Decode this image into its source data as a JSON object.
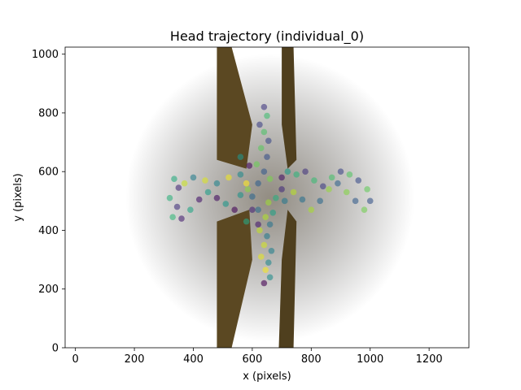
{
  "chart_data": {
    "type": "scatter",
    "title": "Head trajectory (individual_0)",
    "xlabel": "x (pixels)",
    "ylabel": "y (pixels)",
    "xlim": [
      -35,
      1335
    ],
    "ylim": [
      1024,
      0
    ],
    "y_inverted": true,
    "xticks": [
      0,
      200,
      400,
      600,
      800,
      1000,
      1200
    ],
    "yticks": [
      0,
      200,
      400,
      600,
      800,
      1000
    ],
    "background_image": "overhead video frame of a plus-shaped (cross) maze with wooden arms on a dark background",
    "image_extent": {
      "x": [
        0,
        1296
      ],
      "y": [
        0,
        1024
      ]
    },
    "colormap": "viridis",
    "grid": false,
    "legend": "none",
    "series": [
      {
        "points": [
          [
            640,
            220
          ],
          [
            660,
            240
          ],
          [
            645,
            265
          ],
          [
            655,
            290
          ],
          [
            630,
            310
          ],
          [
            665,
            330
          ],
          [
            640,
            350
          ],
          [
            650,
            380
          ],
          [
            625,
            400
          ],
          [
            660,
            420
          ],
          [
            645,
            445
          ],
          [
            620,
            470
          ],
          [
            655,
            495
          ],
          [
            600,
            515
          ],
          [
            585,
            540
          ],
          [
            620,
            560
          ],
          [
            660,
            575
          ],
          [
            640,
            600
          ],
          [
            615,
            625
          ],
          [
            650,
            650
          ],
          [
            630,
            680
          ],
          [
            655,
            705
          ],
          [
            640,
            735
          ],
          [
            625,
            760
          ],
          [
            650,
            790
          ],
          [
            640,
            820
          ],
          [
            330,
            445
          ],
          [
            345,
            480
          ],
          [
            320,
            510
          ],
          [
            350,
            545
          ],
          [
            335,
            575
          ],
          [
            360,
            440
          ],
          [
            390,
            470
          ],
          [
            420,
            505
          ],
          [
            450,
            530
          ],
          [
            480,
            510
          ],
          [
            510,
            490
          ],
          [
            540,
            470
          ],
          [
            560,
            520
          ],
          [
            580,
            560
          ],
          [
            560,
            590
          ],
          [
            520,
            580
          ],
          [
            480,
            560
          ],
          [
            440,
            570
          ],
          [
            400,
            580
          ],
          [
            370,
            560
          ],
          [
            710,
            500
          ],
          [
            740,
            530
          ],
          [
            770,
            505
          ],
          [
            800,
            470
          ],
          [
            830,
            500
          ],
          [
            860,
            540
          ],
          [
            890,
            560
          ],
          [
            920,
            530
          ],
          [
            950,
            500
          ],
          [
            980,
            470
          ],
          [
            1000,
            500
          ],
          [
            990,
            540
          ],
          [
            960,
            570
          ],
          [
            930,
            590
          ],
          [
            900,
            600
          ],
          [
            870,
            580
          ],
          [
            840,
            550
          ],
          [
            810,
            570
          ],
          [
            780,
            600
          ],
          [
            750,
            590
          ],
          [
            700,
            540
          ],
          [
            680,
            510
          ],
          [
            600,
            470
          ],
          [
            580,
            430
          ],
          [
            620,
            420
          ],
          [
            670,
            460
          ],
          [
            700,
            580
          ],
          [
            720,
            600
          ],
          [
            590,
            620
          ],
          [
            560,
            650
          ]
        ]
      }
    ]
  }
}
